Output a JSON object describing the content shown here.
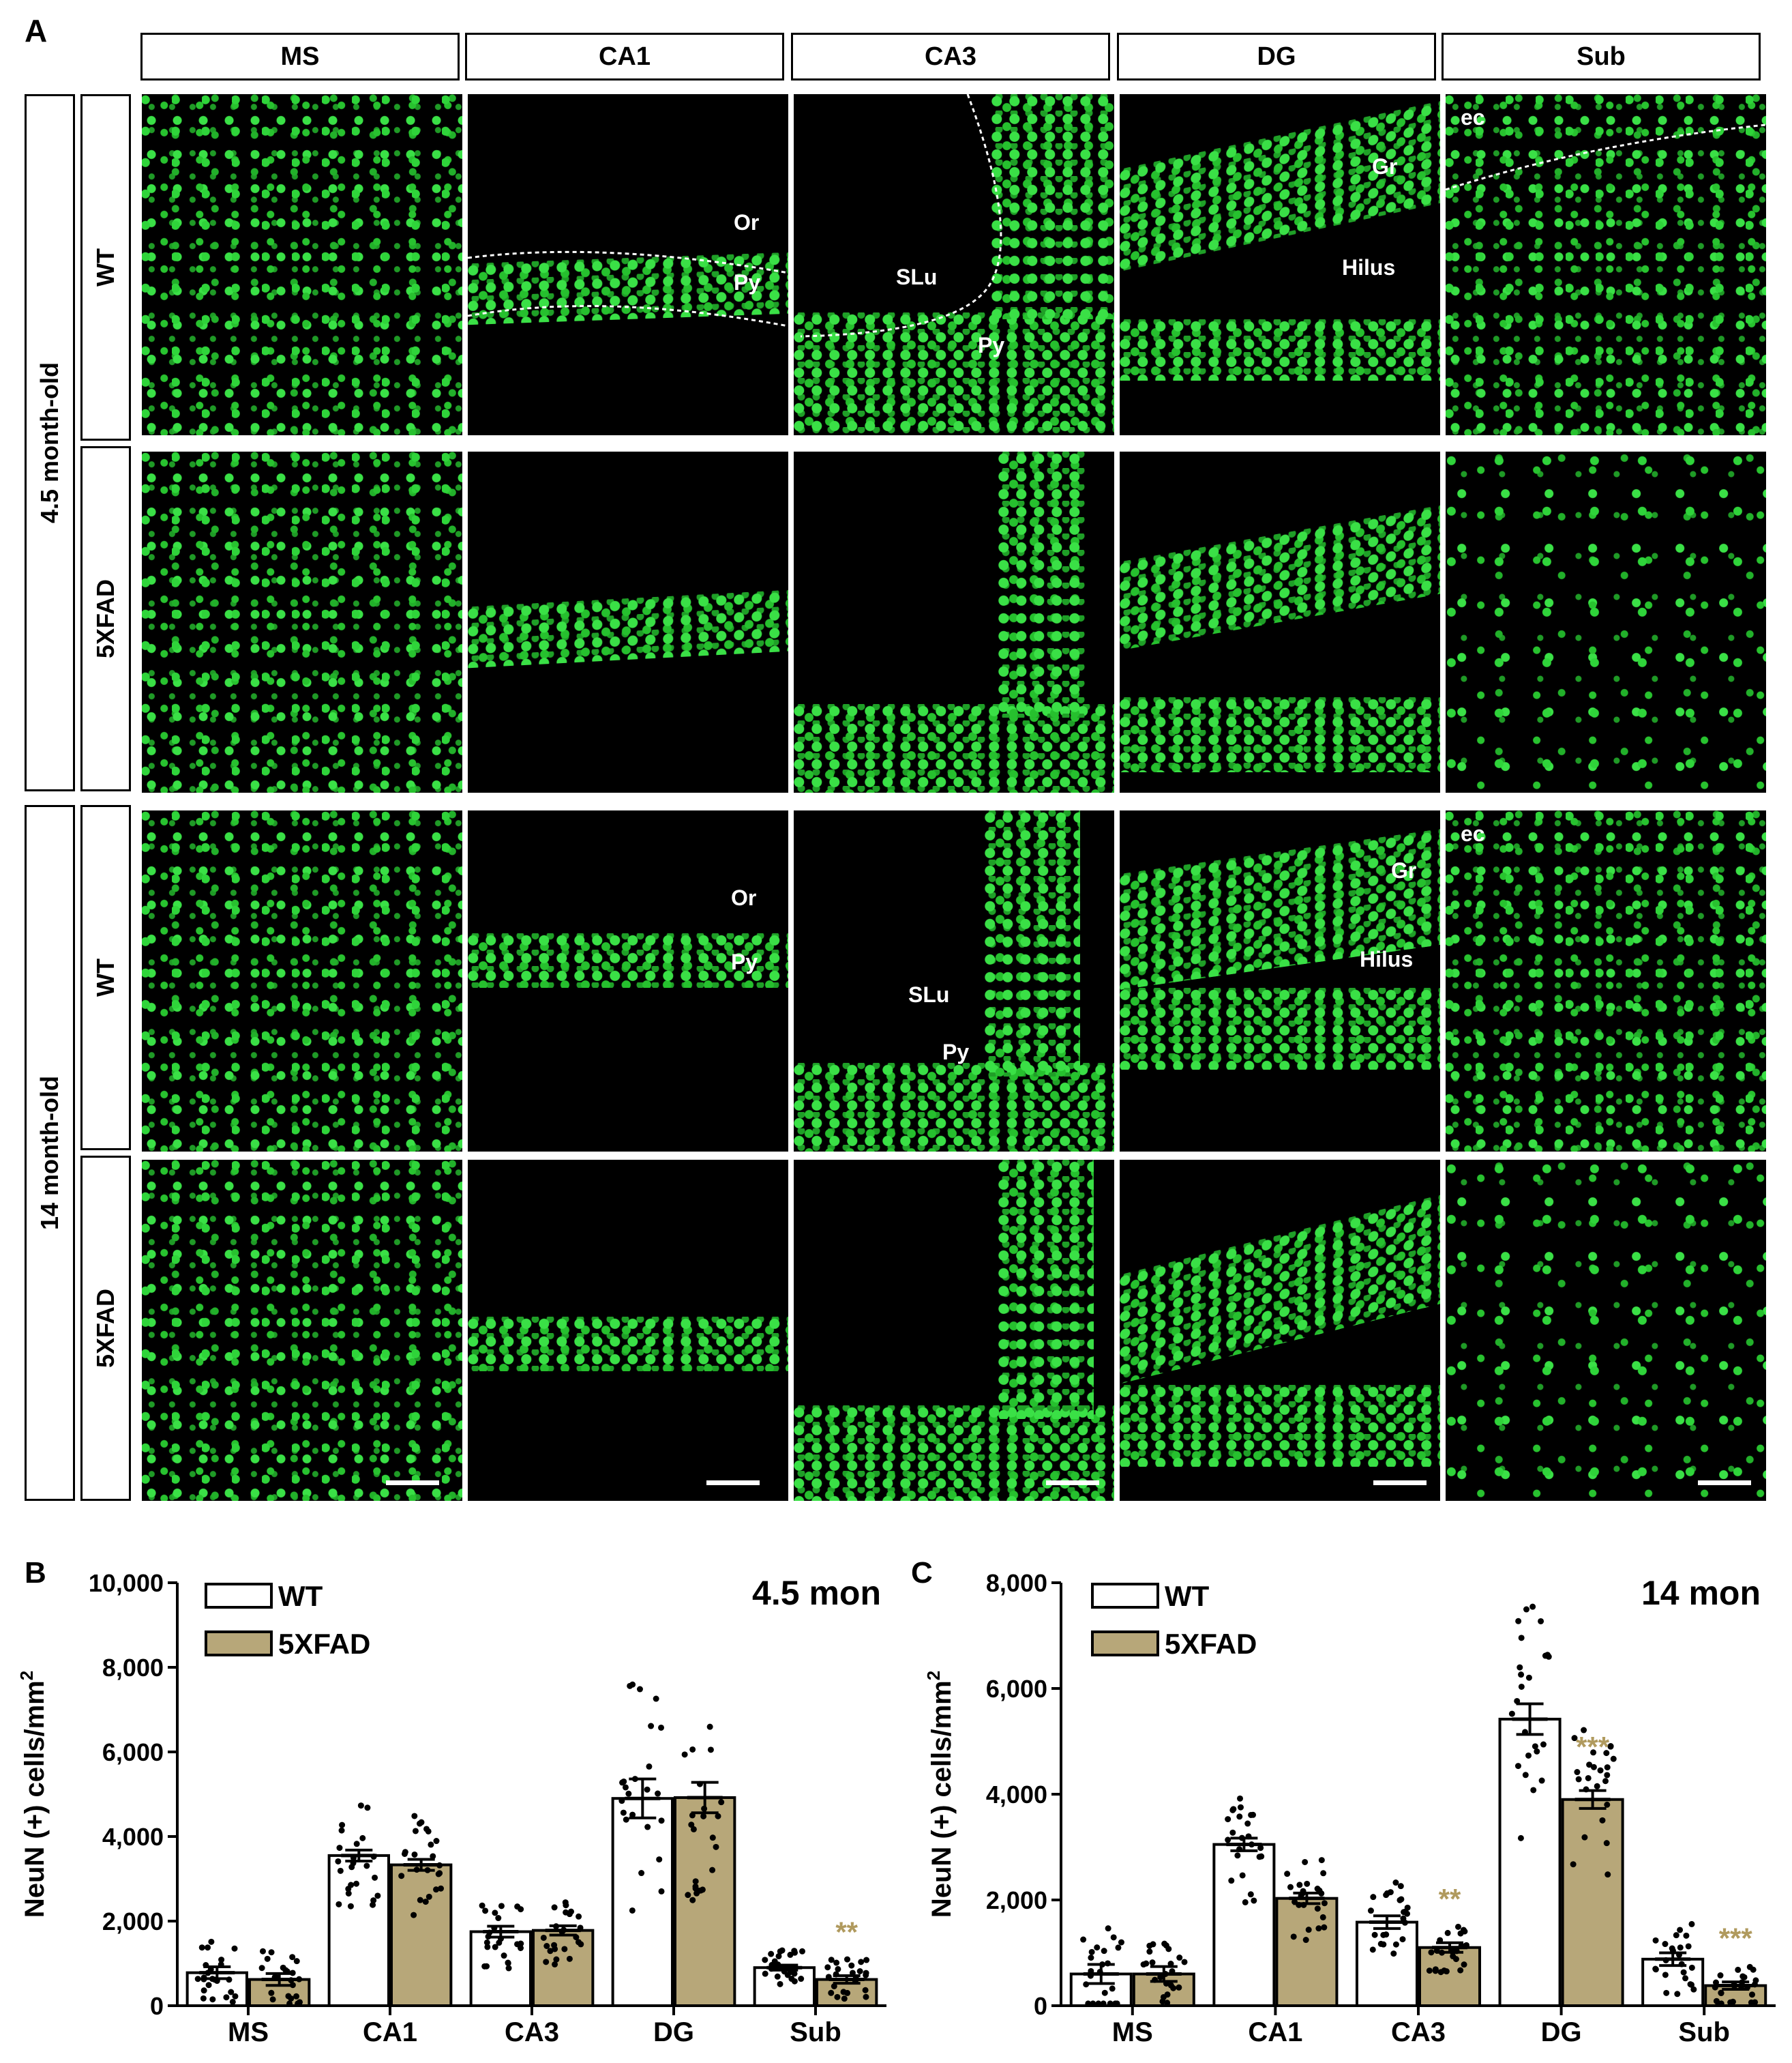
{
  "panel_a": {
    "letter": "A",
    "columns": [
      "MS",
      "CA1",
      "CA3",
      "DG",
      "Sub"
    ],
    "ages": [
      "4.5 month-old",
      "14 month-old"
    ],
    "genotypes": [
      "WT",
      "5XFAD",
      "WT",
      "5XFAD"
    ],
    "labels": {
      "or": "Or",
      "py": "Py",
      "slu": "SLu",
      "gr": "Gr",
      "hilus": "Hilus",
      "ec": "ec"
    }
  },
  "chart_data": [
    {
      "panel": "B",
      "type": "bar",
      "title": "4.5 mon",
      "xlabel": "",
      "ylabel": "NeuN (+) cells/mm",
      "ylabel_sup": "2",
      "categories": [
        "MS",
        "CA1",
        "CA3",
        "DG",
        "Sub"
      ],
      "ylim": [
        0,
        10000
      ],
      "yticks": [
        0,
        2000,
        4000,
        6000,
        8000,
        10000
      ],
      "ytick_labels": [
        "0",
        "2,000",
        "4,000",
        "6,000",
        "8,000",
        "10,000"
      ],
      "series": [
        {
          "name": "WT",
          "color": "#ffffff",
          "values": [
            780,
            3550,
            1750,
            4900,
            900
          ],
          "errors": [
            140,
            130,
            130,
            460,
            60
          ]
        },
        {
          "name": "5XFAD",
          "color": "#b7a779",
          "values": [
            620,
            3330,
            1780,
            4920,
            620
          ],
          "errors": [
            140,
            130,
            110,
            360,
            90
          ]
        }
      ],
      "significance": [
        {
          "category": "Sub",
          "series": "5XFAD",
          "label": "**",
          "color": "#b09a5e"
        }
      ],
      "legend_position": "top-left"
    },
    {
      "panel": "C",
      "type": "bar",
      "title": "14 mon",
      "xlabel": "",
      "ylabel": "NeuN (+) cells/mm",
      "ylabel_sup": "2",
      "categories": [
        "MS",
        "CA1",
        "CA3",
        "DG",
        "Sub"
      ],
      "ylim": [
        0,
        8000
      ],
      "yticks": [
        0,
        2000,
        4000,
        6000,
        8000
      ],
      "ytick_labels": [
        "0",
        "2,000",
        "4,000",
        "6,000",
        "8,000"
      ],
      "series": [
        {
          "name": "WT",
          "color": "#ffffff",
          "values": [
            600,
            3050,
            1580,
            5420,
            880
          ],
          "errors": [
            180,
            120,
            120,
            290,
            120
          ]
        },
        {
          "name": "5XFAD",
          "color": "#b7a779",
          "values": [
            600,
            2030,
            1100,
            3900,
            380
          ],
          "errors": [
            140,
            100,
            90,
            170,
            70
          ]
        }
      ],
      "significance": [
        {
          "category": "CA3",
          "series": "5XFAD",
          "label": "**",
          "color": "#b09a5e"
        },
        {
          "category": "DG",
          "series": "5XFAD",
          "label": "***",
          "color": "#b09a5e"
        },
        {
          "category": "Sub",
          "series": "5XFAD",
          "label": "***",
          "color": "#b09a5e"
        }
      ],
      "legend_position": "top-left"
    }
  ]
}
